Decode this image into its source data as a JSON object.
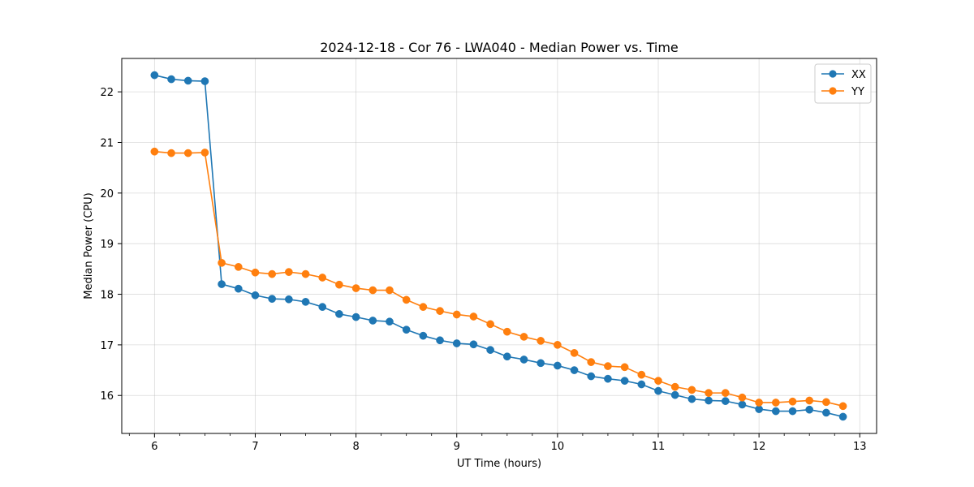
{
  "chart_data": {
    "type": "line",
    "title": "2024-12-18 - Cor 76 - LWA040 - Median Power vs. Time",
    "xlabel": "UT Time (hours)",
    "ylabel": "Median Power (CPU)",
    "xlim": [
      5.675,
      13.167
    ],
    "ylim": [
      15.25,
      22.66
    ],
    "xticks": [
      6,
      7,
      8,
      9,
      10,
      11,
      12,
      13
    ],
    "xtick_labels": [
      "6",
      "7",
      "8",
      "9",
      "10",
      "11",
      "12",
      "13"
    ],
    "yticks": [
      16,
      17,
      18,
      19,
      20,
      21,
      22
    ],
    "ytick_labels": [
      "16",
      "17",
      "18",
      "19",
      "20",
      "21",
      "22"
    ],
    "grid": true,
    "legend_position": "top-right",
    "x": [
      6.0,
      6.1667,
      6.3333,
      6.5,
      6.6667,
      6.8333,
      7.0,
      7.1667,
      7.3333,
      7.5,
      7.6667,
      7.8333,
      8.0,
      8.1667,
      8.3333,
      8.5,
      8.6667,
      8.8333,
      9.0,
      9.1667,
      9.3333,
      9.5,
      9.6667,
      9.8333,
      10.0,
      10.1667,
      10.3333,
      10.5,
      10.6667,
      10.8333,
      11.0,
      11.1667,
      11.3333,
      11.5,
      11.6667,
      11.8333,
      12.0,
      12.1667,
      12.3333,
      12.5,
      12.6667,
      12.8333
    ],
    "series": [
      {
        "name": "XX",
        "color": "#1f77b4",
        "values": [
          22.33,
          22.25,
          22.22,
          22.21,
          18.2,
          18.11,
          17.98,
          17.91,
          17.9,
          17.85,
          17.75,
          17.61,
          17.55,
          17.48,
          17.46,
          17.3,
          17.18,
          17.09,
          17.03,
          17.01,
          16.9,
          16.77,
          16.71,
          16.64,
          16.59,
          16.5,
          16.38,
          16.33,
          16.29,
          16.22,
          16.09,
          16.01,
          15.93,
          15.9,
          15.89,
          15.82,
          15.73,
          15.69,
          15.69,
          15.72,
          15.66,
          15.58
        ]
      },
      {
        "name": "YY",
        "color": "#ff7f0e",
        "values": [
          20.82,
          20.79,
          20.79,
          20.8,
          18.62,
          18.54,
          18.43,
          18.4,
          18.44,
          18.4,
          18.33,
          18.19,
          18.12,
          18.08,
          18.08,
          17.89,
          17.75,
          17.67,
          17.6,
          17.56,
          17.41,
          17.26,
          17.16,
          17.08,
          17.0,
          16.84,
          16.66,
          16.58,
          16.56,
          16.41,
          16.29,
          16.17,
          16.11,
          16.05,
          16.05,
          15.96,
          15.86,
          15.86,
          15.88,
          15.9,
          15.87,
          15.79
        ]
      }
    ]
  }
}
